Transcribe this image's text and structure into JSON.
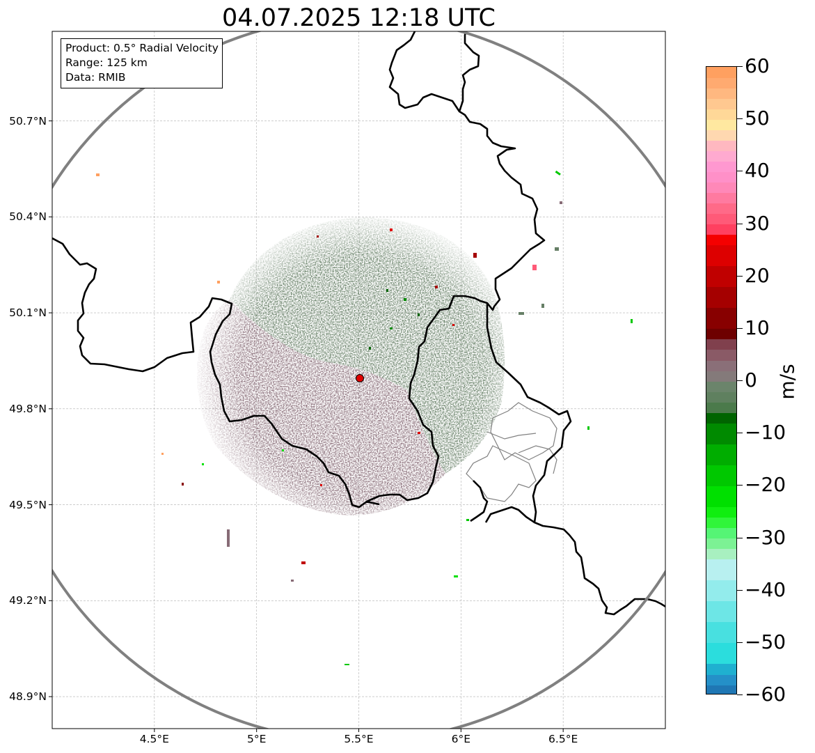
{
  "title": "04.07.2025 12:18 UTC",
  "legend": {
    "product": "Product: 0.5° Radial Velocity",
    "range": "Range: 125 km",
    "source": "Data: RMIB"
  },
  "map": {
    "lon_range": [
      4.0,
      7.0
    ],
    "lat_range": [
      48.8,
      50.98
    ],
    "radar_site": {
      "lon": 5.505,
      "lat": 49.914
    },
    "range_ring_km": 125,
    "lon_ticks": [
      {
        "value": 4.5,
        "label": "4.5°E"
      },
      {
        "value": 5.0,
        "label": "5°E"
      },
      {
        "value": 5.5,
        "label": "5.5°E"
      },
      {
        "value": 6.0,
        "label": "6°E"
      },
      {
        "value": 6.5,
        "label": "6.5°E"
      }
    ],
    "lat_ticks": [
      {
        "value": 50.7,
        "label": "50.7°N"
      },
      {
        "value": 50.4,
        "label": "50.4°N"
      },
      {
        "value": 50.1,
        "label": "50.1°N"
      },
      {
        "value": 49.8,
        "label": "49.8°N"
      },
      {
        "value": 49.5,
        "label": "49.5°N"
      },
      {
        "value": 49.2,
        "label": "49.2°N"
      },
      {
        "value": 48.9,
        "label": "48.9°N"
      }
    ],
    "colors": {
      "ring": "#808080",
      "border": "#000000",
      "admin": "#808080",
      "grid": "#b0b0b0",
      "site": "#e00000"
    }
  },
  "colorbar": {
    "unit": "m/s",
    "min": -60,
    "max": 60,
    "ticks": [
      60,
      50,
      40,
      30,
      20,
      10,
      0,
      -10,
      -20,
      -30,
      -40,
      -50,
      -60
    ],
    "tick_labels": [
      "60",
      "50",
      "40",
      "30",
      "20",
      "10",
      "0",
      "−10",
      "−20",
      "−30",
      "−40",
      "−50",
      "−60"
    ],
    "bands": [
      {
        "from": -60,
        "to": -58,
        "color": "#1f77b4"
      },
      {
        "from": -58,
        "to": -56,
        "color": "#2490c8"
      },
      {
        "from": -56,
        "to": -54,
        "color": "#1fb0d0"
      },
      {
        "from": -54,
        "to": -50,
        "color": "#2bdddd"
      },
      {
        "from": -50,
        "to": -46,
        "color": "#48e0e0"
      },
      {
        "from": -46,
        "to": -42,
        "color": "#6de6e6"
      },
      {
        "from": -42,
        "to": -38,
        "color": "#93ecec"
      },
      {
        "from": -38,
        "to": -34,
        "color": "#b8f0f0"
      },
      {
        "from": -34,
        "to": -32,
        "color": "#a8f0c0"
      },
      {
        "from": -32,
        "to": -30,
        "color": "#7cf294"
      },
      {
        "from": -30,
        "to": -28,
        "color": "#55f575"
      },
      {
        "from": -28,
        "to": -26,
        "color": "#30f53a"
      },
      {
        "from": -26,
        "to": -24,
        "color": "#10ee10"
      },
      {
        "from": -24,
        "to": -20,
        "color": "#00e000"
      },
      {
        "from": -20,
        "to": -16,
        "color": "#00c800"
      },
      {
        "from": -16,
        "to": -12,
        "color": "#00ad00"
      },
      {
        "from": -12,
        "to": -8,
        "color": "#008a00"
      },
      {
        "from": -8,
        "to": -6,
        "color": "#006400"
      },
      {
        "from": -6,
        "to": -4,
        "color": "#4b7a4b"
      },
      {
        "from": -4,
        "to": -2,
        "color": "#5f805f"
      },
      {
        "from": -2,
        "to": 0,
        "color": "#6b846b"
      },
      {
        "from": 0,
        "to": 2,
        "color": "#847a7a"
      },
      {
        "from": 2,
        "to": 4,
        "color": "#8a6f78"
      },
      {
        "from": 4,
        "to": 6,
        "color": "#8a5a66"
      },
      {
        "from": 6,
        "to": 8,
        "color": "#80404d"
      },
      {
        "from": 8,
        "to": 10,
        "color": "#6e0000"
      },
      {
        "from": 10,
        "to": 14,
        "color": "#880000"
      },
      {
        "from": 14,
        "to": 18,
        "color": "#a50000"
      },
      {
        "from": 18,
        "to": 22,
        "color": "#c00000"
      },
      {
        "from": 22,
        "to": 26,
        "color": "#dd0000"
      },
      {
        "from": 26,
        "to": 28,
        "color": "#f50000"
      },
      {
        "from": 28,
        "to": 30,
        "color": "#ff4060"
      },
      {
        "from": 30,
        "to": 32,
        "color": "#ff5a78"
      },
      {
        "from": 32,
        "to": 34,
        "color": "#ff6a88"
      },
      {
        "from": 34,
        "to": 36,
        "color": "#ff7aa0"
      },
      {
        "from": 36,
        "to": 38,
        "color": "#ff88b8"
      },
      {
        "from": 38,
        "to": 40,
        "color": "#ff90c8"
      },
      {
        "from": 40,
        "to": 42,
        "color": "#ff98d0"
      },
      {
        "from": 42,
        "to": 44,
        "color": "#ffaad0"
      },
      {
        "from": 44,
        "to": 46,
        "color": "#ffb8c0"
      },
      {
        "from": 46,
        "to": 48,
        "color": "#ffd8b0"
      },
      {
        "from": 48,
        "to": 50,
        "color": "#ffe8a0"
      },
      {
        "from": 50,
        "to": 52,
        "color": "#ffd898"
      },
      {
        "from": 52,
        "to": 54,
        "color": "#ffc890"
      },
      {
        "from": 54,
        "to": 56,
        "color": "#ffb880"
      },
      {
        "from": 56,
        "to": 58,
        "color": "#ffaa70"
      },
      {
        "from": 58,
        "to": 60,
        "color": "#ffa060"
      }
    ]
  }
}
